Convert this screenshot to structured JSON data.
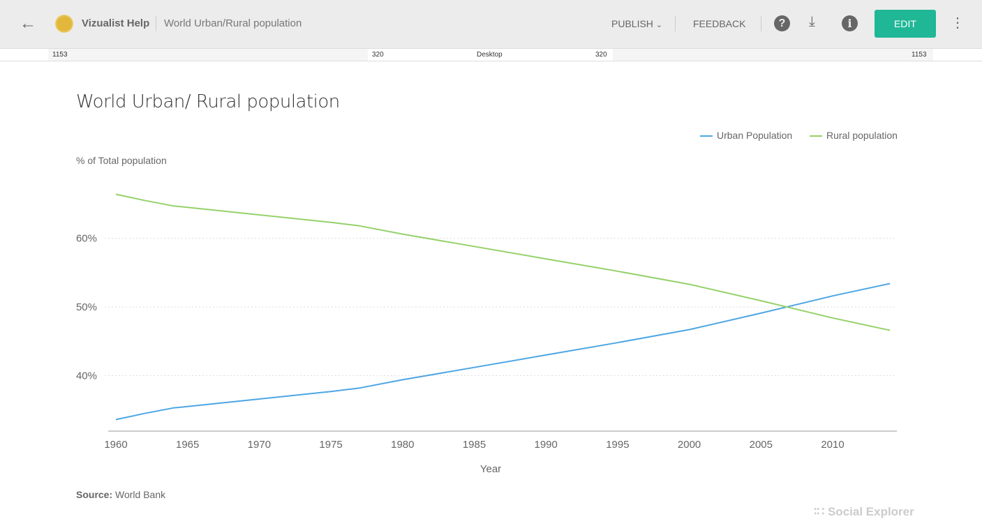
{
  "header": {
    "app_name": "Vizualist Help",
    "document_title": "World Urban/Rural population",
    "publish_label": "PUBLISH",
    "feedback_label": "FEEDBACK",
    "edit_label": "EDIT"
  },
  "ruler": {
    "left_width": "1153",
    "left_inner": "320",
    "center": "Desktop",
    "right_inner": "320",
    "right_width": "1153"
  },
  "chart_data": {
    "type": "line",
    "title": "World Urban/ Rural population",
    "ylabel": "% of Total population",
    "xlabel": "Year",
    "ylim": [
      32,
      70
    ],
    "xlim": [
      1960,
      2014
    ],
    "yticks": [
      "40%",
      "50%",
      "60%"
    ],
    "ytick_values": [
      40,
      50,
      60
    ],
    "xticks": [
      "1960",
      "1965",
      "1970",
      "1975",
      "1980",
      "1985",
      "1990",
      "1995",
      "2000",
      "2005",
      "2010"
    ],
    "grid": "horizontal dotted",
    "legend": "top-right",
    "x": [
      1960,
      1962,
      1964,
      1965,
      1970,
      1975,
      1977,
      1980,
      1985,
      1990,
      1995,
      2000,
      2005,
      2010,
      2014
    ],
    "series": [
      {
        "name": "Urban Population",
        "color": "#4da6e3",
        "values": [
          33.6,
          34.5,
          35.3,
          35.5,
          36.6,
          37.7,
          38.2,
          39.4,
          41.2,
          43.0,
          44.8,
          46.7,
          49.1,
          51.6,
          53.4
        ]
      },
      {
        "name": "Rural population",
        "color": "#95d16a",
        "values": [
          66.4,
          65.5,
          64.7,
          64.5,
          63.4,
          62.3,
          61.8,
          60.6,
          58.8,
          57.0,
          55.2,
          53.3,
          50.9,
          48.4,
          46.6
        ]
      }
    ],
    "source_label": "Source:",
    "source": "World Bank"
  },
  "branding": "Social Explorer",
  "colors": {
    "accent": "#20b796"
  }
}
